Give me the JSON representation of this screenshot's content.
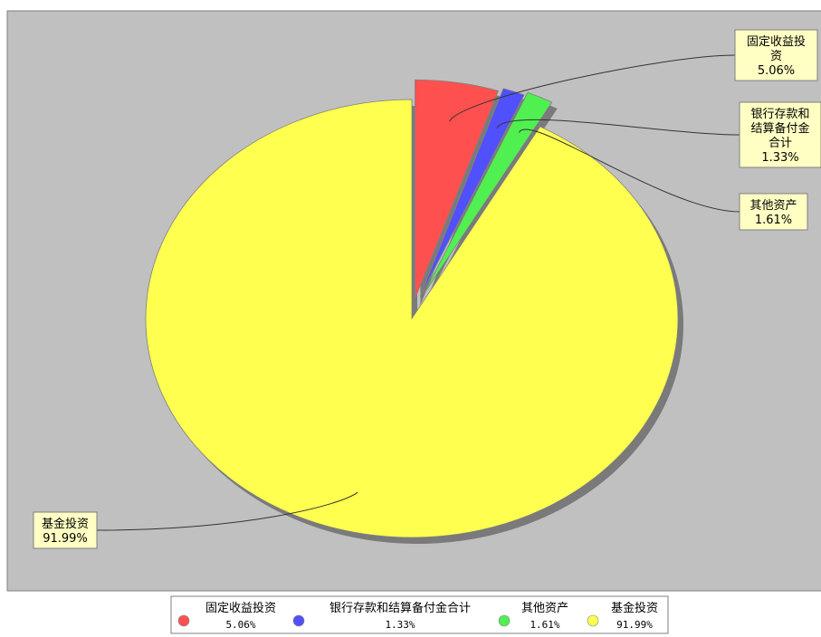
{
  "chart_data": {
    "type": "pie",
    "title": "",
    "categories": [
      "固定收益投资",
      "银行存款和结算备付金合计",
      "其他资产",
      "基金投资"
    ],
    "values": [
      5.06,
      1.33,
      1.61,
      91.99
    ],
    "unit": "%",
    "series": [
      {
        "label": "固定收益投资",
        "callout_lines": [
          "固定收益投",
          "资"
        ],
        "value": 5.06,
        "value_text": "5.06%",
        "color": "#ff5050"
      },
      {
        "label": "银行存款和结算备付金合计",
        "callout_lines": [
          "银行存款和",
          "结算备付金",
          "合计"
        ],
        "value": 1.33,
        "value_text": "1.33%",
        "color": "#5050ff"
      },
      {
        "label": "其他资产",
        "callout_lines": [
          "其他资产"
        ],
        "value": 1.61,
        "value_text": "1.61%",
        "color": "#50f050"
      },
      {
        "label": "基金投资",
        "callout_lines": [
          "基金投资"
        ],
        "value": 91.99,
        "value_text": "91.99%",
        "color": "#ffff50"
      }
    ],
    "exploded_slices": [
      "固定收益投资",
      "银行存款和结算备付金合计",
      "其他资产"
    ],
    "legend_position": "bottom",
    "plot_background": "#c0c0c0",
    "grid": false
  }
}
